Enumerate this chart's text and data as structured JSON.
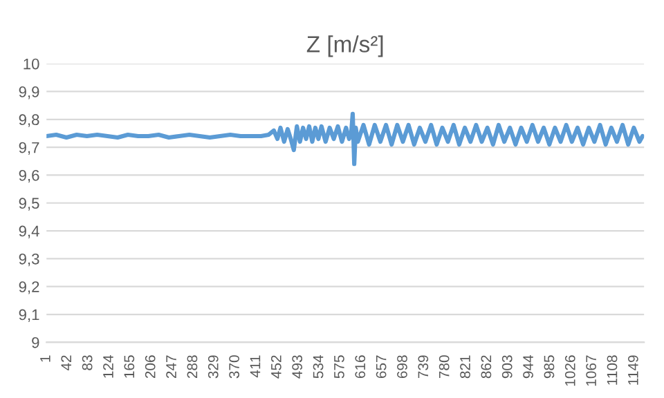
{
  "chart_data": {
    "type": "line",
    "title": "Z [m/s²]",
    "series": [
      {
        "color": "#5b9bd5",
        "x": [
          1,
          20,
          40,
          60,
          80,
          100,
          120,
          140,
          160,
          180,
          200,
          220,
          240,
          260,
          280,
          300,
          320,
          340,
          360,
          380,
          400,
          420,
          435,
          445,
          452,
          458,
          465,
          472,
          478,
          484,
          490,
          496,
          502,
          508,
          514,
          520,
          526,
          532,
          538,
          546,
          554,
          562,
          570,
          578,
          586,
          592,
          596,
          599,
          602,
          605,
          609,
          620,
          631,
          642,
          653,
          664,
          675,
          686,
          697,
          708,
          719,
          730,
          741,
          752,
          763,
          774,
          785,
          796,
          807,
          818,
          829,
          840,
          851,
          862,
          873,
          884,
          895,
          906,
          917,
          928,
          939,
          950,
          961,
          972,
          983,
          994,
          1005,
          1016,
          1027,
          1038,
          1049,
          1060,
          1071,
          1082,
          1093,
          1104,
          1115,
          1126,
          1137,
          1148,
          1159,
          1165
        ],
        "values": [
          9.74,
          9.745,
          9.735,
          9.745,
          9.74,
          9.745,
          9.74,
          9.735,
          9.745,
          9.74,
          9.74,
          9.745,
          9.735,
          9.74,
          9.745,
          9.74,
          9.735,
          9.74,
          9.745,
          9.74,
          9.74,
          9.74,
          9.745,
          9.76,
          9.73,
          9.77,
          9.72,
          9.765,
          9.73,
          9.69,
          9.775,
          9.72,
          9.77,
          9.73,
          9.775,
          9.72,
          9.77,
          9.73,
          9.775,
          9.72,
          9.77,
          9.73,
          9.775,
          9.72,
          9.77,
          9.73,
          9.75,
          9.82,
          9.64,
          9.77,
          9.72,
          9.78,
          9.71,
          9.78,
          9.72,
          9.78,
          9.71,
          9.78,
          9.72,
          9.78,
          9.71,
          9.77,
          9.72,
          9.78,
          9.71,
          9.77,
          9.72,
          9.78,
          9.71,
          9.77,
          9.72,
          9.78,
          9.72,
          9.77,
          9.71,
          9.78,
          9.72,
          9.77,
          9.71,
          9.77,
          9.72,
          9.78,
          9.72,
          9.77,
          9.71,
          9.77,
          9.72,
          9.78,
          9.72,
          9.77,
          9.71,
          9.77,
          9.72,
          9.78,
          9.71,
          9.77,
          9.72,
          9.78,
          9.71,
          9.77,
          9.72,
          9.74
        ]
      }
    ],
    "xlim": [
      1,
      1168
    ],
    "xticks": [
      1,
      42,
      83,
      124,
      165,
      206,
      247,
      288,
      329,
      370,
      411,
      452,
      493,
      534,
      575,
      616,
      657,
      698,
      739,
      780,
      821,
      862,
      903,
      944,
      985,
      1026,
      1067,
      1108,
      1149
    ],
    "ylim": [
      9,
      10
    ],
    "yticks": [
      9,
      {
        "value": 9.1,
        "label": "9,1"
      },
      {
        "value": 9.2,
        "label": "9,2"
      },
      {
        "value": 9.3,
        "label": "9,3"
      },
      {
        "value": 9.4,
        "label": "9,4"
      },
      {
        "value": 9.5,
        "label": "9,5"
      },
      {
        "value": 9.6,
        "label": "9,6"
      },
      {
        "value": 9.7,
        "label": "9,7"
      },
      {
        "value": 9.8,
        "label": "9,8"
      },
      {
        "value": 9.9,
        "label": "9,9"
      },
      10
    ],
    "grid": "y",
    "legend": false,
    "marker": "none",
    "line_style": "solid"
  }
}
